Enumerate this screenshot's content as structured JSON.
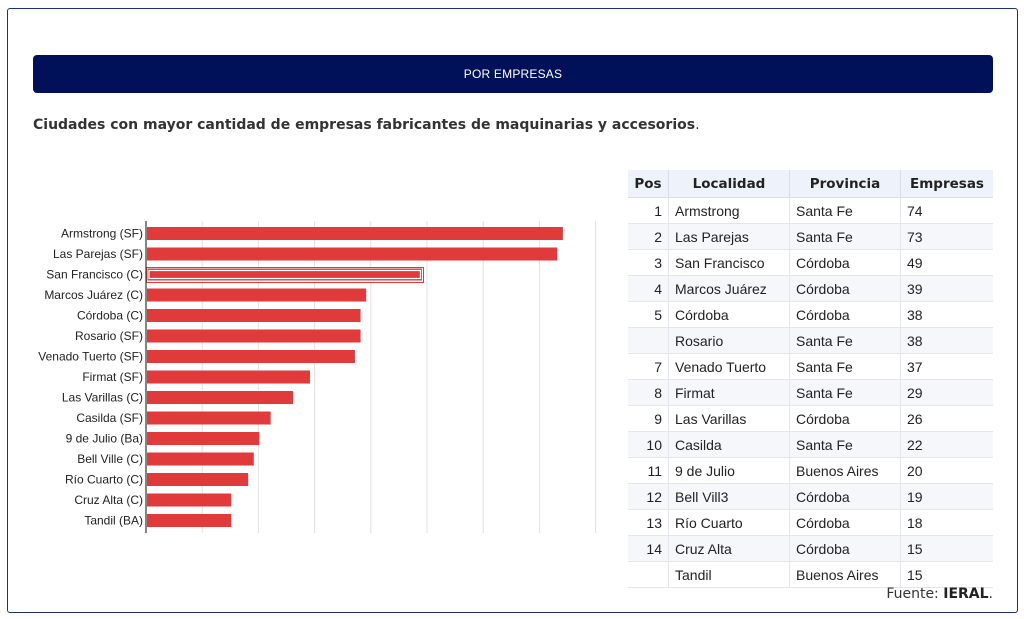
{
  "section_title": "POR EMPRESAS",
  "subtitle": "Ciudades con mayor cantidad de empresas fabricantes de maquinarias y accesorios",
  "subtitle_end": ".",
  "chart_data": {
    "type": "bar",
    "orientation": "horizontal",
    "categories": [
      "Armstrong (SF)",
      "Las Parejas (SF)",
      "San Francisco (C)",
      "Marcos Juárez (C)",
      "Córdoba (C)",
      "Rosario (SF)",
      "Venado Tuerto (SF)",
      "Firmat (SF)",
      "Las Varillas (C)",
      "Casilda (SF)",
      "9 de Julio (Ba)",
      "Bell Ville (C)",
      "Río Cuarto (C)",
      "Cruz Alta (C)",
      "Tandil (BA)"
    ],
    "values": [
      74,
      73,
      49,
      39,
      38,
      38,
      37,
      29,
      26,
      22,
      20,
      19,
      18,
      15,
      15
    ],
    "xlim": [
      0,
      80
    ],
    "grid": true,
    "bar_color": "#e03a3a",
    "highlighted_bar": "San Francisco (C)"
  },
  "table": {
    "headers": [
      "Pos",
      "Localidad",
      "Provincia",
      "Empresas"
    ],
    "rows": [
      [
        "1",
        "Armstrong",
        "Santa Fe",
        "74"
      ],
      [
        "2",
        "Las Parejas",
        "Santa Fe",
        "73"
      ],
      [
        "3",
        "San Francisco",
        "Córdoba",
        "49"
      ],
      [
        "4",
        "Marcos Juárez",
        "Córdoba",
        "39"
      ],
      [
        "5",
        "Córdoba",
        "Córdoba",
        "38"
      ],
      [
        "",
        "Rosario",
        "Santa Fe",
        "38"
      ],
      [
        "7",
        "Venado Tuerto",
        "Santa Fe",
        "37"
      ],
      [
        "8",
        "Firmat",
        "Santa Fe",
        "29"
      ],
      [
        "9",
        "Las Varillas",
        "Córdoba",
        "26"
      ],
      [
        "10",
        "Casilda",
        "Santa Fe",
        "22"
      ],
      [
        "11",
        "9 de Julio",
        "Buenos Aires",
        "20"
      ],
      [
        "12",
        "Bell Vill3",
        "Córdoba",
        "19"
      ],
      [
        "13",
        "Río Cuarto",
        "Córdoba",
        "18"
      ],
      [
        "14",
        "Cruz Alta",
        "Córdoba",
        "15"
      ],
      [
        "",
        "Tandil",
        "Buenos Aires",
        "15"
      ]
    ]
  },
  "source": {
    "label": "Fuente: ",
    "name": "IERAL",
    "end": "."
  }
}
